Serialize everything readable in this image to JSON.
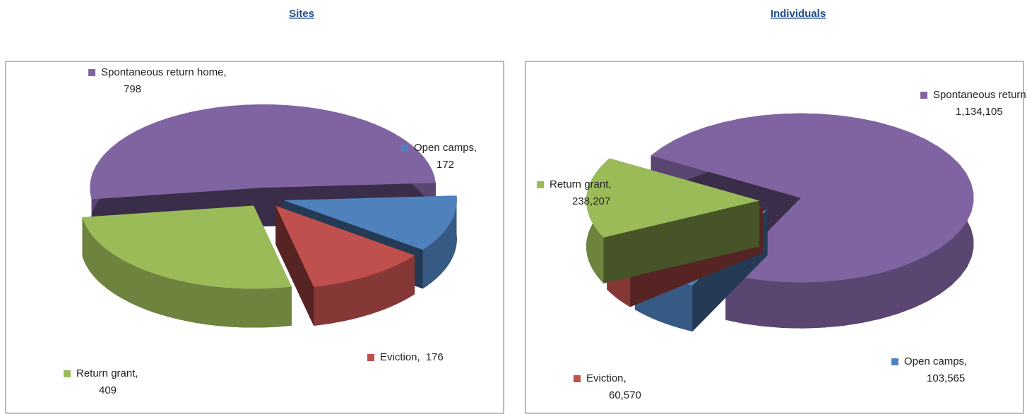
{
  "chart_data": [
    {
      "type": "pie",
      "title": "Sites",
      "categories": [
        "Spontaneous return home",
        "Open camps",
        "Eviction",
        "Return grant"
      ],
      "values": [
        798,
        172,
        176,
        409
      ],
      "colors": [
        "#8064a2",
        "#4f81bd",
        "#c0504d",
        "#9bbb59"
      ]
    },
    {
      "type": "pie",
      "title": "Individuals",
      "categories": [
        "Spontaneous return home",
        "Open camps",
        "Eviction",
        "Return grant"
      ],
      "values": [
        1134105,
        103565,
        60570,
        238207
      ],
      "value_labels": [
        "1,134,105",
        "103,565",
        "60,570",
        "238,207"
      ],
      "colors": [
        "#8064a2",
        "#4f81bd",
        "#c0504d",
        "#9bbb59"
      ]
    }
  ]
}
